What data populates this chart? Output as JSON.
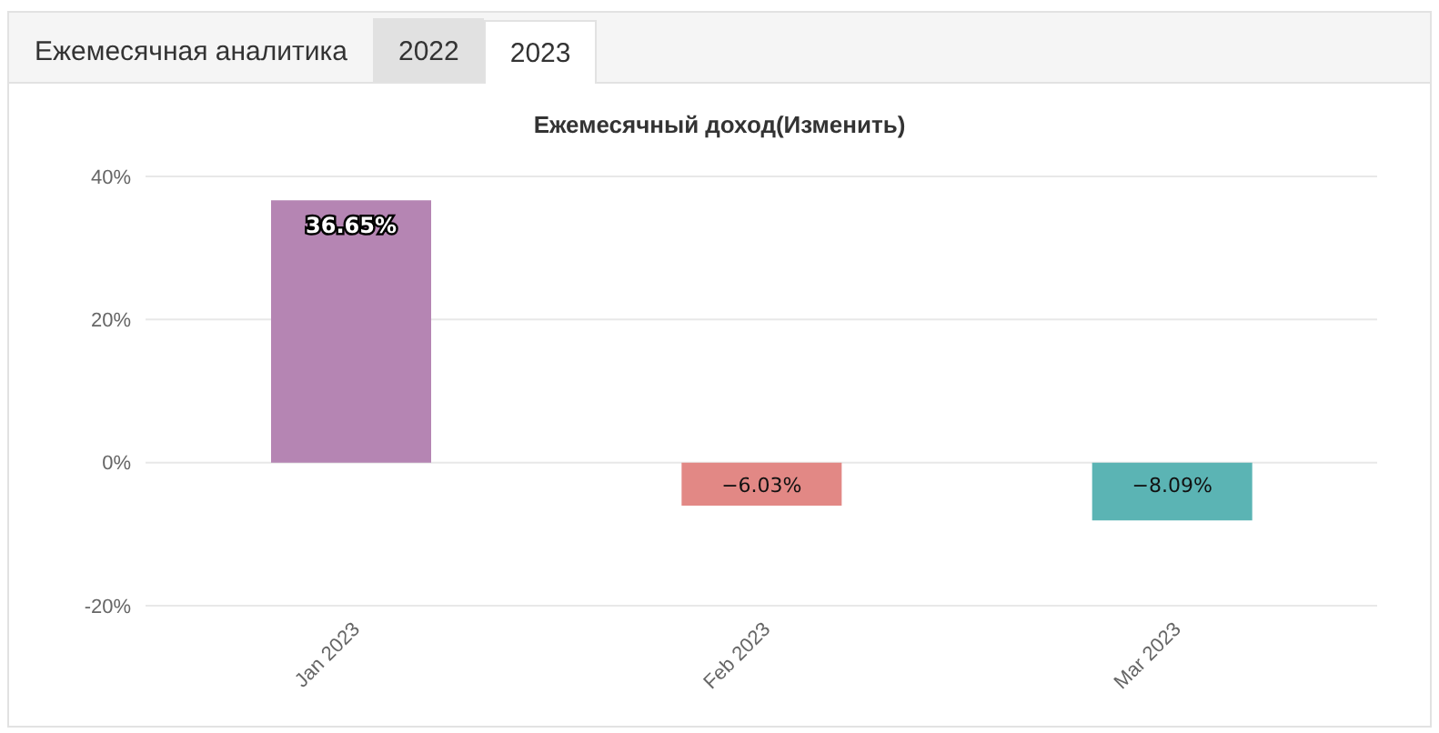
{
  "chart_data": {
    "type": "bar",
    "title": "Ежемесячный доход(Изменить)",
    "annotations": [
      "Ежемесячная аналитика",
      "2022",
      "2023"
    ],
    "categories": [
      "Jan 2023",
      "Feb 2023",
      "Mar 2023"
    ],
    "values": [
      36.65,
      -6.03,
      -8.09
    ],
    "colors": [
      "#b585b3",
      "#e28885",
      "#5bb4b4"
    ],
    "value_labels": [
      "36.65%",
      "−6.03%",
      "−8.09%"
    ],
    "ylim": [
      -20,
      40
    ],
    "yticks": [
      {
        "value": -20,
        "label": "-20%"
      },
      {
        "value": 0,
        "label": "0%"
      },
      {
        "value": 20,
        "label": "20%"
      },
      {
        "value": 40,
        "label": "40%"
      }
    ],
    "grid": "y"
  }
}
